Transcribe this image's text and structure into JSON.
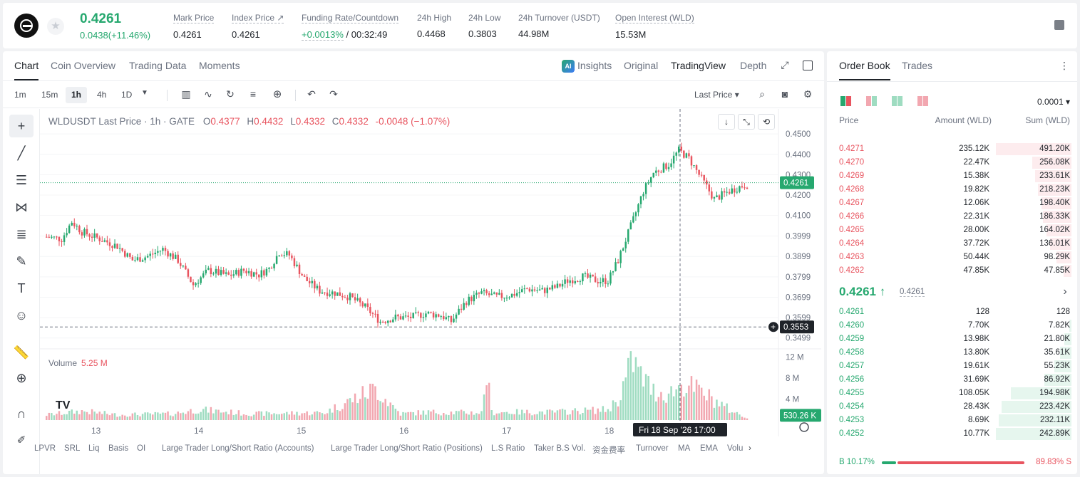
{
  "ticker": {
    "last_price": "0.4261",
    "change": "0.0438(+11.46%)",
    "stats": [
      {
        "label": "Mark Price",
        "value": "0.4261"
      },
      {
        "label": "Index Price ↗",
        "value": "0.4261"
      },
      {
        "label": "Funding Rate/Countdown",
        "value_green": "+0.0013%",
        "value": " / 00:32:49"
      },
      {
        "label": "24h High",
        "value": "0.4468"
      },
      {
        "label": "24h Low",
        "value": "0.3803"
      },
      {
        "label": "24h Turnover (USDT)",
        "value": "44.98M"
      },
      {
        "label": "Open Interest (WLD)",
        "value": "15.53M"
      }
    ]
  },
  "chart_tabs": {
    "left": [
      "Chart",
      "Coin Overview",
      "Trading Data",
      "Moments"
    ],
    "insights": "Insights",
    "right": [
      "Original",
      "TradingView",
      "Depth"
    ]
  },
  "toolbar": {
    "timeframes": [
      "1m",
      "15m",
      "1h",
      "4h",
      "1D"
    ],
    "active_timeframe": "1h",
    "price_type": "Last Price ▾"
  },
  "legend": {
    "symbol": "WLDUSDT Last Price · 1h · GATE",
    "o_label": "O",
    "o": "0.4377",
    "h_label": "H",
    "h": "0.4432",
    "l_label": "L",
    "l": "0.4332",
    "c_label": "C",
    "c": "0.4332",
    "chg": "-0.0048 (−1.07%)"
  },
  "volume_legend": {
    "label": "Volume",
    "value": "5.25 M"
  },
  "colors": {
    "up": "#26a86f",
    "down": "#e8545f",
    "up_vol": "#9fdcc1",
    "down_vol": "#f2a7b0"
  },
  "chart_data": {
    "type": "candlestick",
    "price_axis_ticks": [
      "0.4500",
      "0.4400",
      "0.4300",
      "0.4200",
      "0.4100",
      "0.3999",
      "0.3899",
      "0.3799",
      "0.3699",
      "0.3599",
      "0.3499"
    ],
    "volume_axis_ticks": [
      "12 M",
      "8 M",
      "4 M"
    ],
    "x_ticks": [
      "13",
      "14",
      "15",
      "16",
      "17",
      "18"
    ],
    "current_price_label": "0.4261",
    "crosshair_price_label": "0.3553",
    "crosshair_time_label": "Fri 18 Sep '26   17:00",
    "volume_last_label": "530.26 K",
    "price_series_knots": [
      [
        0,
        0.3995
      ],
      [
        6,
        0.3985
      ],
      [
        10,
        0.407
      ],
      [
        14,
        0.402
      ],
      [
        20,
        0.399
      ],
      [
        28,
        0.395
      ],
      [
        34,
        0.388
      ],
      [
        40,
        0.39
      ],
      [
        46,
        0.3935
      ],
      [
        52,
        0.388
      ],
      [
        58,
        0.376
      ],
      [
        64,
        0.383
      ],
      [
        72,
        0.3805
      ],
      [
        78,
        0.383
      ],
      [
        84,
        0.381
      ],
      [
        88,
        0.384
      ],
      [
        92,
        0.392
      ],
      [
        96,
        0.3905
      ],
      [
        102,
        0.379
      ],
      [
        108,
        0.373
      ],
      [
        114,
        0.372
      ],
      [
        120,
        0.37
      ],
      [
        126,
        0.365
      ],
      [
        132,
        0.358
      ],
      [
        138,
        0.36
      ],
      [
        144,
        0.36
      ],
      [
        150,
        0.362
      ],
      [
        156,
        0.361
      ],
      [
        160,
        0.358
      ],
      [
        166,
        0.368
      ],
      [
        172,
        0.372
      ],
      [
        178,
        0.37
      ],
      [
        184,
        0.371
      ],
      [
        190,
        0.374
      ],
      [
        196,
        0.373
      ],
      [
        202,
        0.375
      ],
      [
        206,
        0.378
      ],
      [
        212,
        0.38
      ],
      [
        218,
        0.378
      ],
      [
        222,
        0.378
      ],
      [
        226,
        0.388
      ],
      [
        232,
        0.408
      ],
      [
        236,
        0.422
      ],
      [
        240,
        0.431
      ],
      [
        246,
        0.435
      ],
      [
        250,
        0.442
      ],
      [
        254,
        0.438
      ],
      [
        260,
        0.426
      ],
      [
        264,
        0.418
      ],
      [
        270,
        0.422
      ],
      [
        276,
        0.425
      ]
    ],
    "volume_knots_m": [
      [
        0,
        1.0
      ],
      [
        14,
        1.7
      ],
      [
        28,
        1.0
      ],
      [
        50,
        1.2
      ],
      [
        60,
        2.0
      ],
      [
        80,
        1.2
      ],
      [
        110,
        1.4
      ],
      [
        130,
        6.0
      ],
      [
        140,
        1.2
      ],
      [
        150,
        1.5
      ],
      [
        172,
        1.4
      ],
      [
        174,
        9.0
      ],
      [
        176,
        1.5
      ],
      [
        200,
        1.5
      ],
      [
        222,
        2.0
      ],
      [
        226,
        4.0
      ],
      [
        232,
        11.5
      ],
      [
        234,
        9.0
      ],
      [
        240,
        5.5
      ],
      [
        246,
        5.0
      ],
      [
        252,
        7.0
      ],
      [
        260,
        5.0
      ],
      [
        270,
        2.0
      ],
      [
        276,
        0.5
      ]
    ]
  },
  "indicators": [
    "LPVR",
    "SRL",
    "Liq",
    "Basis",
    "OI",
    "Large Trader Long/Short Ratio (Accounts)",
    "Large Trader Long/Short Ratio (Positions)",
    "L.S Ratio",
    "Taker B.S Vol.",
    "资金费率",
    "Turnover",
    "MA",
    "EMA",
    "Volu"
  ],
  "orderbook": {
    "tabs": [
      "Order Book",
      "Trades"
    ],
    "precision": "0.0001 ▾",
    "headers": [
      "Price",
      "Amount (WLD)",
      "Sum (WLD)"
    ],
    "asks": [
      {
        "price": "0.4271",
        "amount": "235.12K",
        "sum": "491.20K",
        "depth": 1.0
      },
      {
        "price": "0.4270",
        "amount": "22.47K",
        "sum": "256.08K",
        "depth": 0.52
      },
      {
        "price": "0.4269",
        "amount": "15.38K",
        "sum": "233.61K",
        "depth": 0.48
      },
      {
        "price": "0.4268",
        "amount": "19.82K",
        "sum": "218.23K",
        "depth": 0.44
      },
      {
        "price": "0.4267",
        "amount": "12.06K",
        "sum": "198.40K",
        "depth": 0.4
      },
      {
        "price": "0.4266",
        "amount": "22.31K",
        "sum": "186.33K",
        "depth": 0.38
      },
      {
        "price": "0.4265",
        "amount": "28.00K",
        "sum": "164.02K",
        "depth": 0.33
      },
      {
        "price": "0.4264",
        "amount": "37.72K",
        "sum": "136.01K",
        "depth": 0.28
      },
      {
        "price": "0.4263",
        "amount": "50.44K",
        "sum": "98.29K",
        "depth": 0.2
      },
      {
        "price": "0.4262",
        "amount": "47.85K",
        "sum": "47.85K",
        "depth": 0.1
      }
    ],
    "mid_price": "0.4261 ↑",
    "mid_mark": "0.4261",
    "bids": [
      {
        "price": "0.4261",
        "amount": "128",
        "sum": "128",
        "depth": 0.0
      },
      {
        "price": "0.4260",
        "amount": "7.70K",
        "sum": "7.82K",
        "depth": 0.03
      },
      {
        "price": "0.4259",
        "amount": "13.98K",
        "sum": "21.80K",
        "depth": 0.09
      },
      {
        "price": "0.4258",
        "amount": "13.80K",
        "sum": "35.61K",
        "depth": 0.15
      },
      {
        "price": "0.4257",
        "amount": "19.61K",
        "sum": "55.23K",
        "depth": 0.23
      },
      {
        "price": "0.4256",
        "amount": "31.69K",
        "sum": "86.92K",
        "depth": 0.36
      },
      {
        "price": "0.4255",
        "amount": "108.05K",
        "sum": "194.98K",
        "depth": 0.8
      },
      {
        "price": "0.4254",
        "amount": "28.43K",
        "sum": "223.42K",
        "depth": 0.92
      },
      {
        "price": "0.4253",
        "amount": "8.69K",
        "sum": "232.11K",
        "depth": 0.96
      },
      {
        "price": "0.4252",
        "amount": "10.77K",
        "sum": "242.89K",
        "depth": 1.0
      }
    ],
    "buy_ratio_label": "B 10.17%",
    "sell_ratio_label": "89.83% S",
    "buy_ratio": 0.1017
  }
}
